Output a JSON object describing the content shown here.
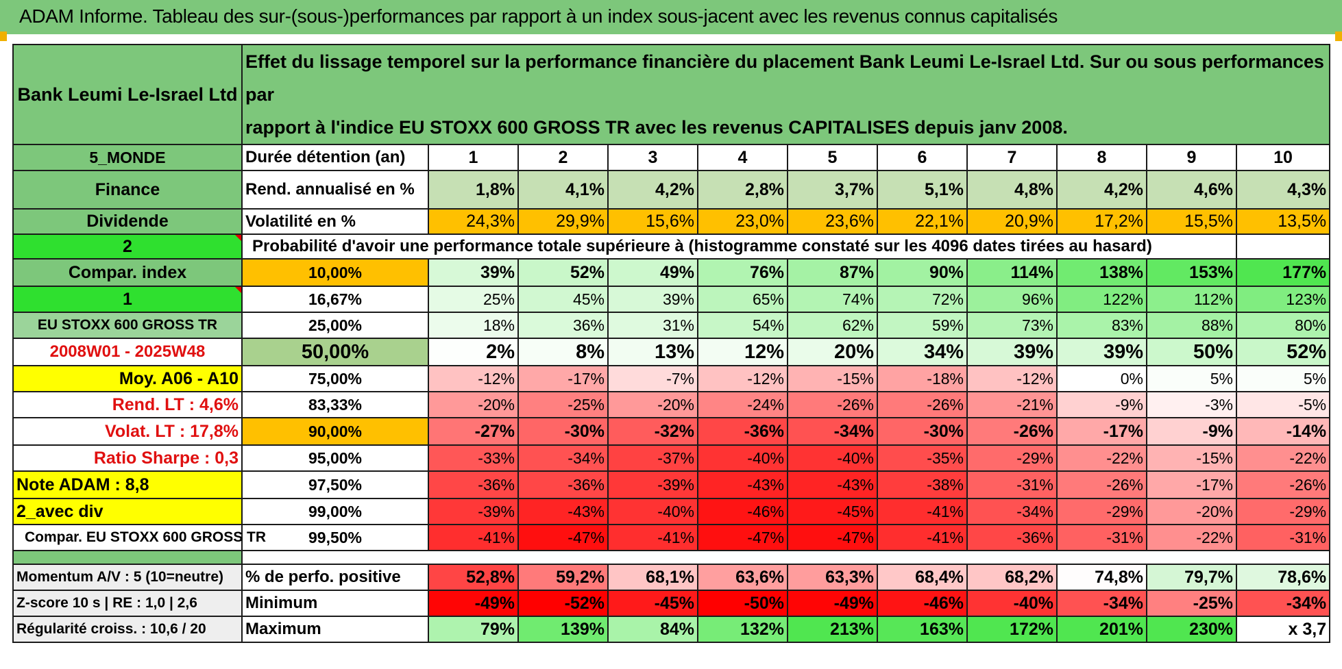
{
  "title": "ADAM Informe. Tableau des sur-(sous-)performances par rapport à un index sous-jacent avec les revenus connus capitalisés",
  "header": {
    "company": "Bank Leumi Le-Israel Ltd",
    "description_line1": "Effet du lissage temporel sur la performance financière du placement Bank Leumi Le-Israel Ltd. Sur ou sous performances par",
    "description_line2": "rapport à l'indice EU STOXX 600 GROSS TR avec les revenus CAPITALISES depuis janv 2008."
  },
  "left": {
    "zone": "5_MONDE",
    "sector": "Finance",
    "type": "Dividende",
    "sel1": "2",
    "compar_index": "Compar. index",
    "sel2": "1",
    "index_name": "EU STOXX 600 GROSS TR",
    "period": "2008W01 - 2025W48",
    "moy": "Moy. A06 - A10",
    "rend_lt": "Rend. LT :    4,6%",
    "volat_lt": "Volat. LT :    17,8%",
    "sharpe": "Ratio Sharpe :    0,3",
    "note": "Note ADAM : 8,8",
    "avec_div": "2_avec div",
    "compar_full": "Compar. EU STOXX 600 GROSS TR",
    "momentum": "Momentum A/V : 5 (10=neutre)",
    "zscore": "Z-score 10 s | RE : 1,0 | 2,6",
    "regularite": "Régularité croiss. : 10,6 / 20"
  },
  "labels": {
    "duree": "Durée détention (an)",
    "rend": "Rend. annualisé en %",
    "vol": "Volatilité en %",
    "proba": "Probabilité d'avoir une performance totale supérieure à (histogramme constaté sur les 4096 dates tirées au hasard)",
    "positive": "% de perfo. positive",
    "minimum": "Minimum",
    "maximum": "Maximum"
  },
  "years": [
    "1",
    "2",
    "3",
    "4",
    "5",
    "6",
    "7",
    "8",
    "9",
    "10"
  ],
  "rend": [
    "1,8%",
    "4,1%",
    "4,2%",
    "2,8%",
    "3,7%",
    "5,1%",
    "4,8%",
    "4,2%",
    "4,6%",
    "4,3%"
  ],
  "vol": [
    "24,3%",
    "29,9%",
    "15,6%",
    "23,0%",
    "23,6%",
    "22,1%",
    "20,9%",
    "17,2%",
    "15,5%",
    "13,5%"
  ],
  "prob_rows": [
    {
      "pct": "10,00%",
      "values": [
        "39%",
        "52%",
        "49%",
        "76%",
        "87%",
        "90%",
        "114%",
        "138%",
        "153%",
        "177%"
      ]
    },
    {
      "pct": "16,67%",
      "values": [
        "25%",
        "45%",
        "39%",
        "65%",
        "74%",
        "72%",
        "96%",
        "122%",
        "112%",
        "123%"
      ]
    },
    {
      "pct": "25,00%",
      "values": [
        "18%",
        "36%",
        "31%",
        "54%",
        "62%",
        "59%",
        "73%",
        "83%",
        "88%",
        "80%"
      ]
    },
    {
      "pct": "50,00%",
      "values": [
        "2%",
        "8%",
        "13%",
        "12%",
        "20%",
        "34%",
        "39%",
        "39%",
        "50%",
        "52%"
      ]
    },
    {
      "pct": "75,00%",
      "values": [
        "-12%",
        "-17%",
        "-7%",
        "-12%",
        "-15%",
        "-18%",
        "-12%",
        "0%",
        "5%",
        "5%"
      ]
    },
    {
      "pct": "83,33%",
      "values": [
        "-20%",
        "-25%",
        "-20%",
        "-24%",
        "-26%",
        "-26%",
        "-21%",
        "-9%",
        "-3%",
        "-5%"
      ]
    },
    {
      "pct": "90,00%",
      "values": [
        "-27%",
        "-30%",
        "-32%",
        "-36%",
        "-34%",
        "-30%",
        "-26%",
        "-17%",
        "-9%",
        "-14%"
      ]
    },
    {
      "pct": "95,00%",
      "values": [
        "-33%",
        "-34%",
        "-37%",
        "-40%",
        "-40%",
        "-35%",
        "-29%",
        "-22%",
        "-15%",
        "-22%"
      ]
    },
    {
      "pct": "97,50%",
      "values": [
        "-36%",
        "-36%",
        "-39%",
        "-43%",
        "-43%",
        "-38%",
        "-31%",
        "-26%",
        "-17%",
        "-26%"
      ]
    },
    {
      "pct": "99,00%",
      "values": [
        "-39%",
        "-43%",
        "-40%",
        "-46%",
        "-45%",
        "-41%",
        "-34%",
        "-29%",
        "-20%",
        "-29%"
      ]
    },
    {
      "pct": "99,50%",
      "values": [
        "-41%",
        "-47%",
        "-41%",
        "-47%",
        "-47%",
        "-41%",
        "-36%",
        "-31%",
        "-22%",
        "-31%"
      ]
    }
  ],
  "positive": [
    "52,8%",
    "59,2%",
    "68,1%",
    "63,6%",
    "63,3%",
    "68,4%",
    "68,2%",
    "74,8%",
    "79,7%",
    "78,6%"
  ],
  "minimum": [
    "-49%",
    "-52%",
    "-45%",
    "-50%",
    "-49%",
    "-46%",
    "-40%",
    "-34%",
    "-25%",
    "-34%"
  ],
  "maximum": [
    "79%",
    "139%",
    "84%",
    "132%",
    "213%",
    "163%",
    "172%",
    "201%",
    "230%",
    "x 3,7"
  ],
  "colors": {
    "green_header": "#7dc77b",
    "bright_green": "#2fe02f",
    "yellow": "#ffff00",
    "orange": "#ffc000",
    "label_red": "#e01010"
  }
}
